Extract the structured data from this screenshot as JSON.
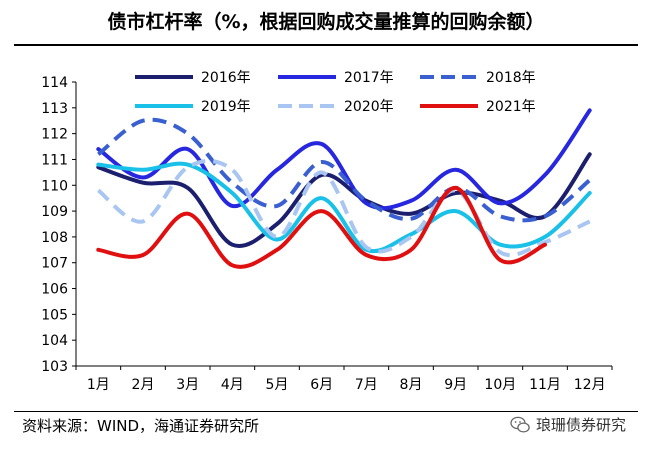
{
  "title": "债市杠杆率（%，根据回购成交量推算的回购余额）",
  "source": "资料来源：WIND，海通证券研究所",
  "brand": "琅珊债券研究",
  "icons": {
    "brand_logo": "wechat-icon"
  },
  "chart_data": {
    "type": "line",
    "title": "债市杠杆率（%，根据回购成交量推算的回购余额）",
    "xlabel": "",
    "ylabel": "",
    "ylim": [
      103,
      114
    ],
    "yticks": [
      103,
      104,
      105,
      106,
      107,
      108,
      109,
      110,
      111,
      112,
      113,
      114
    ],
    "categories": [
      "1月",
      "2月",
      "3月",
      "4月",
      "5月",
      "6月",
      "7月",
      "8月",
      "9月",
      "10月",
      "11月",
      "12月"
    ],
    "legend_position": "top",
    "series": [
      {
        "name": "2016年",
        "color": "#1b1f6e",
        "dash": "solid",
        "values": [
          110.7,
          110.1,
          109.9,
          107.7,
          108.5,
          110.4,
          109.4,
          108.9,
          109.7,
          109.4,
          108.8,
          111.2
        ]
      },
      {
        "name": "2017年",
        "color": "#2727e0",
        "dash": "solid",
        "values": [
          111.4,
          110.3,
          111.4,
          109.2,
          110.6,
          111.6,
          109.3,
          109.4,
          110.6,
          109.3,
          110.4,
          112.9
        ]
      },
      {
        "name": "2018年",
        "color": "#3a5fd0",
        "dash": "dashed",
        "values": [
          111.2,
          112.5,
          112.0,
          110.1,
          109.2,
          110.9,
          109.4,
          108.7,
          109.9,
          108.8,
          108.8,
          110.2
        ]
      },
      {
        "name": "2019年",
        "color": "#19c0e8",
        "dash": "solid",
        "values": [
          110.8,
          110.6,
          110.8,
          109.7,
          107.9,
          109.5,
          107.5,
          108.1,
          109.0,
          107.7,
          108.0,
          109.7
        ]
      },
      {
        "name": "2020年",
        "color": "#a9c6f2",
        "dash": "dashed",
        "values": [
          109.8,
          108.6,
          110.7,
          110.6,
          108.0,
          110.5,
          107.6,
          108.0,
          109.8,
          107.4,
          107.8,
          108.6
        ]
      },
      {
        "name": "2021年",
        "color": "#e01010",
        "dash": "solid",
        "values": [
          107.5,
          107.3,
          108.9,
          106.9,
          107.5,
          109.0,
          107.3,
          107.5,
          109.9,
          107.1,
          107.7,
          null
        ]
      }
    ]
  }
}
